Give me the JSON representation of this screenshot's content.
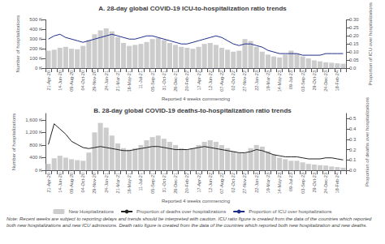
{
  "chart_data": [
    {
      "type": "bar",
      "title": "A. 28-day global COVID-19 ICU-to-hospitalization ratio trends",
      "xlabel": "Reported 4 weeks commencing",
      "ylabel": "Number of hospitalizations",
      "y2label": "Proportion of ICU over hospitalizations",
      "categories": [
        "21-Apr-20",
        null,
        "14-Jun-20",
        null,
        "09-Aug-20",
        null,
        "04-Oct-20",
        null,
        "29-Nov-20",
        null,
        "24-Jan-21",
        null,
        "21-Mar-21",
        null,
        "16-May-21",
        null,
        "11-Jul-21",
        null,
        "05-Sep-21",
        null,
        "31-Oct-21",
        null,
        "26-Dec-21",
        null,
        "20-Feb-22",
        null,
        "17-Apr-22",
        null,
        "12-Jun-22",
        null,
        "07-Aug-22",
        null,
        "02-Oct-22",
        null,
        "27-Nov-22",
        null,
        "22-Jan-23",
        null,
        "19-Mar-23",
        null,
        "14-May-23",
        null,
        "09-Jul-23",
        null,
        "03-Sep-23",
        null,
        "29-Oct-23",
        null,
        "24-Dec-23",
        null,
        "18-Feb-24",
        null
      ],
      "series": [
        {
          "name": "New Hospitalizations",
          "type": "bar",
          "color": "#cccccc",
          "values": [
            180000,
            190000,
            210000,
            220000,
            200000,
            195000,
            230000,
            290000,
            350000,
            390000,
            410000,
            380000,
            320000,
            260000,
            230000,
            240000,
            250000,
            270000,
            300000,
            310000,
            290000,
            260000,
            240000,
            220000,
            210000,
            200000,
            220000,
            250000,
            260000,
            240000,
            210000,
            190000,
            170000,
            180000,
            300000,
            280000,
            220000,
            170000,
            140000,
            120000,
            110000,
            140000,
            180000,
            150000,
            120000,
            100000,
            80000,
            70000,
            60000,
            55000,
            50000,
            45000
          ]
        },
        {
          "name": "Proportion of ICU over hospitalizations",
          "type": "line",
          "color": "#1f2e8c",
          "axis": "y2",
          "values": [
            0.18,
            0.2,
            0.21,
            0.19,
            0.18,
            0.17,
            0.16,
            0.17,
            0.18,
            0.19,
            0.2,
            0.21,
            0.2,
            0.19,
            0.18,
            0.18,
            0.19,
            0.2,
            0.2,
            0.19,
            0.18,
            0.17,
            0.16,
            0.15,
            0.15,
            0.16,
            0.17,
            0.18,
            0.19,
            0.2,
            0.19,
            0.17,
            0.15,
            0.14,
            0.15,
            0.15,
            0.14,
            0.13,
            0.11,
            0.1,
            0.09,
            0.09,
            0.09,
            0.09,
            0.08,
            0.08,
            0.08,
            0.08,
            0.09,
            0.09,
            0.09,
            0.09
          ]
        }
      ],
      "ylim": [
        0,
        500000
      ],
      "yticks": [
        {
          "value": 0,
          "label": "0 K"
        },
        {
          "value": 100000,
          "label": "100 K"
        },
        {
          "value": 200000,
          "label": "200 K"
        },
        {
          "value": 300000,
          "label": "300 K"
        },
        {
          "value": 400000,
          "label": "400 K"
        },
        {
          "value": 500000,
          "label": "500 K"
        }
      ],
      "y2lim": [
        0.0,
        0.3
      ],
      "y2ticks": [
        {
          "value": 0.0,
          "label": "0.0"
        },
        0.05,
        {
          "value": 0.1,
          "label": "0.10"
        },
        0.15,
        {
          "value": 0.2,
          "label": "0.20"
        },
        0.25,
        {
          "value": 0.3,
          "label": "0.30"
        }
      ],
      "grid": false,
      "legend": "bottom"
    },
    {
      "type": "bar",
      "title": "B. 28-day global COVID-19 deaths-to-hospitalization ratio trends",
      "xlabel": "Reported 4 weeks commencing",
      "ylabel": "Number of hospitalizations",
      "y2label": "Proportion of deaths over hospitalizations",
      "categories": [
        "21-Apr-20",
        null,
        "14-Jun-20",
        null,
        "09-Aug-20",
        null,
        "04-Oct-20",
        null,
        "29-Nov-20",
        null,
        "24-Jan-21",
        null,
        "21-Mar-21",
        null,
        "16-May-21",
        null,
        "11-Jul-21",
        null,
        "05-Sep-21",
        null,
        "31-Oct-21",
        null,
        "26-Dec-21",
        null,
        "20-Feb-22",
        null,
        "17-Apr-22",
        null,
        "12-Jun-22",
        null,
        "07-Aug-22",
        null,
        "02-Oct-22",
        null,
        "27-Nov-22",
        null,
        "22-Jan-23",
        null,
        "19-Mar-23",
        null,
        "14-May-23",
        null,
        "09-Jul-23",
        null,
        "03-Sep-23",
        null,
        "29-Oct-23",
        null,
        "24-Dec-23",
        null,
        "18-Feb-24",
        null
      ],
      "series": [
        {
          "name": "New Hospitalizations",
          "type": "bar",
          "color": "#cccccc",
          "values": [
            200000,
            380000,
            460000,
            400000,
            350000,
            320000,
            300000,
            560000,
            1200000,
            1500000,
            1350000,
            1100000,
            850000,
            700000,
            650000,
            700000,
            800000,
            950000,
            1050000,
            1100000,
            1000000,
            900000,
            800000,
            700000,
            650000,
            700000,
            800000,
            900000,
            950000,
            900000,
            800000,
            700000,
            600000,
            550000,
            550000,
            700000,
            800000,
            750000,
            600000,
            500000,
            400000,
            350000,
            300000,
            300000,
            250000,
            200000,
            180000,
            160000,
            150000,
            120000,
            100000,
            80000
          ]
        },
        {
          "name": "Proportion of deaths over hospitalizations",
          "type": "line",
          "color": "#222222",
          "axis": "y2",
          "values": [
            0.25,
            0.45,
            0.4,
            0.35,
            0.28,
            0.25,
            0.22,
            0.21,
            0.22,
            0.23,
            0.22,
            0.21,
            0.2,
            0.19,
            0.19,
            0.2,
            0.21,
            0.22,
            0.23,
            0.23,
            0.22,
            0.21,
            0.2,
            0.2,
            0.2,
            0.21,
            0.22,
            0.23,
            0.22,
            0.21,
            0.2,
            0.19,
            0.18,
            0.17,
            0.17,
            0.18,
            0.2,
            0.19,
            0.17,
            0.15,
            0.14,
            0.13,
            0.13,
            0.13,
            0.12,
            0.11,
            0.11,
            0.11,
            0.12,
            0.12,
            0.11,
            0.1
          ]
        }
      ],
      "ylim": [
        0,
        1800000
      ],
      "yticks": [
        {
          "value": 0,
          "label": "0 K"
        },
        {
          "value": 400000,
          "label": "400 K"
        },
        {
          "value": 800000,
          "label": "800 K"
        },
        {
          "value": 1200000,
          "label": "1,200 K"
        },
        {
          "value": 1600000,
          "label": "1,600 K"
        }
      ],
      "y2lim": [
        0.0,
        0.55
      ],
      "y2ticks": [
        {
          "value": 0.0,
          "label": "0.0"
        },
        0.1,
        0.2,
        0.3,
        0.4,
        0.5
      ],
      "grid": false,
      "legend": "bottom",
      "annotations": [
        "Note: Recent weeks are subject to reporting delays and trends should be interpreted with caution. ICU ratio figure is created from the data of the countries which reported both new hospitalizations and new ICU admissions. Death ratio figure is created from the data of the countries which reported both new hospitalization and new deaths."
      ]
    }
  ]
}
